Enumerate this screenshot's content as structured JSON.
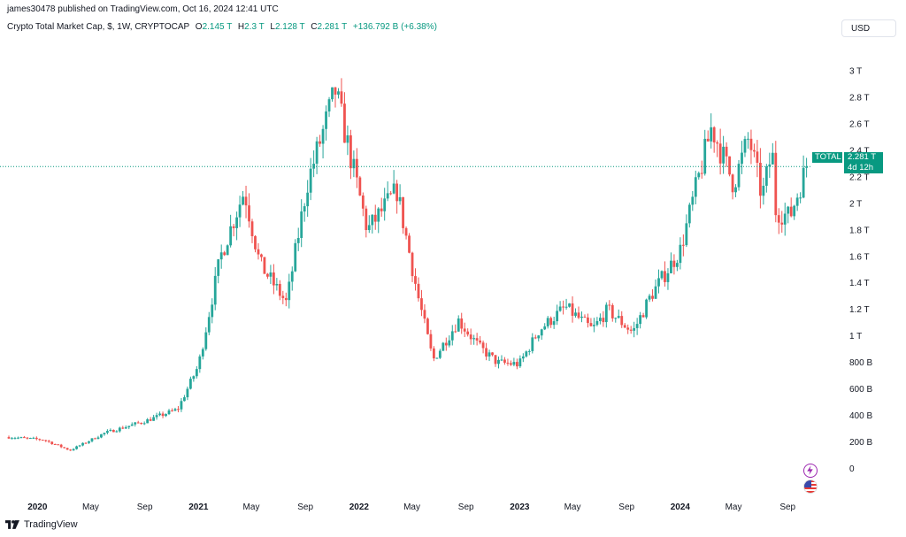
{
  "header": {
    "publisher": "james30478 published on TradingView.com, Oct 16, 2024 12:41 UTC",
    "symbol": "Crypto Total Market Cap, $, 1W, CRYPTOCAP",
    "o_label": "O",
    "o_value": "2.145 T",
    "h_label": "H",
    "h_value": "2.3 T",
    "l_label": "L",
    "l_value": "2.128 T",
    "c_label": "C",
    "c_value": "2.281 T",
    "change": "+136.792 B (+6.38%)"
  },
  "currency_button": "USD",
  "badges": {
    "ticker": "TOTAL",
    "price": "2.281 T",
    "countdown": "4d 12h"
  },
  "footer": {
    "brand": "TradingView"
  },
  "icons": [
    "lightning-icon",
    "us-flag-icon",
    "tradingview-logo-icon"
  ],
  "colors": {
    "up": "#26a69a",
    "down": "#ef5350",
    "last_price_line": "#089981"
  },
  "chart_data": {
    "type": "candlestick",
    "title": "Crypto Total Market Cap, $, 1W, CRYPTOCAP",
    "y_unit": "USD",
    "y_ticks": [
      "3 T",
      "2.8 T",
      "2.6 T",
      "2.4 T",
      "2.2 T",
      "2 T",
      "1.8 T",
      "1.6 T",
      "1.4 T",
      "1.2 T",
      "1 T",
      "800 B",
      "600 B",
      "400 B",
      "200 B",
      "0"
    ],
    "ylim": [
      -0.2,
      3.15
    ],
    "x_ticks": [
      "2020",
      "May",
      "Sep",
      "2021",
      "May",
      "Sep",
      "2022",
      "May",
      "Sep",
      "2023",
      "May",
      "Sep",
      "2024",
      "May",
      "Sep"
    ],
    "x_tick_dates": [
      "2020-01-01",
      "2020-05-01",
      "2020-09-01",
      "2021-01-01",
      "2021-05-01",
      "2021-09-01",
      "2022-01-01",
      "2022-05-01",
      "2022-09-01",
      "2023-01-01",
      "2023-05-01",
      "2023-09-01",
      "2024-01-01",
      "2024-05-01",
      "2024-09-01"
    ],
    "xlim": [
      "2019-10-28",
      "2024-11-20"
    ],
    "last_price": 2.281,
    "grid": false,
    "key_points": [
      {
        "date": "2019-10-28",
        "close": 0.24
      },
      {
        "date": "2020-01-15",
        "close": 0.22
      },
      {
        "date": "2020-03-15",
        "close": 0.14
      },
      {
        "date": "2020-06-01",
        "close": 0.27
      },
      {
        "date": "2020-09-01",
        "close": 0.36
      },
      {
        "date": "2020-11-15",
        "close": 0.45
      },
      {
        "date": "2021-01-01",
        "close": 0.78
      },
      {
        "date": "2021-02-20",
        "close": 1.6
      },
      {
        "date": "2021-04-15",
        "close": 2.1
      },
      {
        "date": "2021-05-20",
        "close": 1.55
      },
      {
        "date": "2021-07-20",
        "close": 1.25
      },
      {
        "date": "2021-09-05",
        "close": 2.15
      },
      {
        "date": "2021-11-08",
        "close": 2.85
      },
      {
        "date": "2022-01-20",
        "close": 1.8
      },
      {
        "date": "2022-03-28",
        "close": 2.1
      },
      {
        "date": "2022-05-15",
        "close": 1.3
      },
      {
        "date": "2022-06-18",
        "close": 0.82
      },
      {
        "date": "2022-08-15",
        "close": 1.12
      },
      {
        "date": "2022-10-01",
        "close": 0.92
      },
      {
        "date": "2022-11-12",
        "close": 0.8
      },
      {
        "date": "2022-12-31",
        "close": 0.79
      },
      {
        "date": "2023-02-15",
        "close": 1.05
      },
      {
        "date": "2023-04-15",
        "close": 1.22
      },
      {
        "date": "2023-06-15",
        "close": 1.05
      },
      {
        "date": "2023-07-20",
        "close": 1.2
      },
      {
        "date": "2023-09-15",
        "close": 1.03
      },
      {
        "date": "2023-10-25",
        "close": 1.3
      },
      {
        "date": "2024-01-01",
        "close": 1.65
      },
      {
        "date": "2024-03-12",
        "close": 2.58
      },
      {
        "date": "2024-05-01",
        "close": 2.15
      },
      {
        "date": "2024-06-05",
        "close": 2.5
      },
      {
        "date": "2024-07-05",
        "close": 2.05
      },
      {
        "date": "2024-07-28",
        "close": 2.4
      },
      {
        "date": "2024-08-05",
        "close": 1.95
      },
      {
        "date": "2024-09-06",
        "close": 1.9
      },
      {
        "date": "2024-10-14",
        "close": 2.281
      }
    ]
  }
}
